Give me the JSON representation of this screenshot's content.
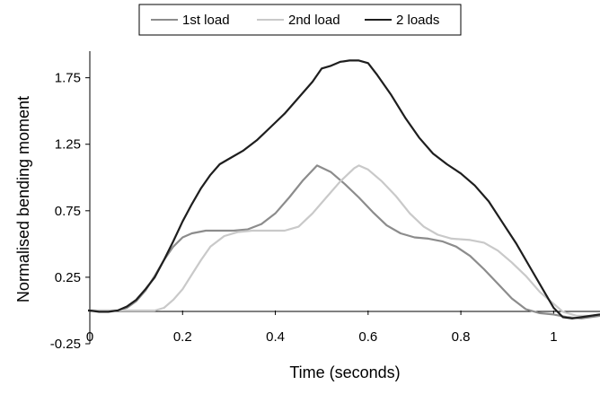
{
  "chart_data": {
    "type": "line",
    "title": "",
    "xlabel": "Time (seconds)",
    "ylabel": "Normalised bending moment",
    "xlim": [
      0,
      1.1
    ],
    "ylim": [
      -0.25,
      1.95
    ],
    "x_ticks": [
      "0",
      "0.2",
      "0.4",
      "0.6",
      "0.8",
      "1"
    ],
    "x_tick_values": [
      0,
      0.2,
      0.4,
      0.6,
      0.8,
      1.0
    ],
    "y_ticks": [
      "-0.25",
      "0.25",
      "0.75",
      "1.25",
      "1.75"
    ],
    "y_tick_values": [
      -0.25,
      0.25,
      0.75,
      1.25,
      1.75
    ],
    "grid": false,
    "legend_position": "top",
    "series": [
      {
        "name": "1st load",
        "color": "#8c8c8c",
        "x": [
          -0.02,
          0.0,
          0.02,
          0.04,
          0.06,
          0.08,
          0.1,
          0.12,
          0.14,
          0.16,
          0.18,
          0.2,
          0.22,
          0.25,
          0.28,
          0.31,
          0.34,
          0.37,
          0.4,
          0.43,
          0.46,
          0.49,
          0.52,
          0.55,
          0.58,
          0.61,
          0.64,
          0.67,
          0.7,
          0.73,
          0.76,
          0.79,
          0.82,
          0.85,
          0.88,
          0.91,
          0.94,
          0.97,
          1.0,
          1.03,
          1.06,
          1.1
        ],
        "y": [
          0.0,
          0.0,
          0.0,
          0.0,
          0.0,
          0.02,
          0.07,
          0.15,
          0.26,
          0.38,
          0.48,
          0.55,
          0.58,
          0.6,
          0.6,
          0.6,
          0.61,
          0.65,
          0.73,
          0.85,
          0.98,
          1.09,
          1.04,
          0.95,
          0.85,
          0.74,
          0.64,
          0.58,
          0.55,
          0.54,
          0.52,
          0.48,
          0.41,
          0.31,
          0.2,
          0.09,
          0.01,
          -0.02,
          -0.03,
          -0.05,
          -0.06,
          -0.04
        ]
      },
      {
        "name": "2nd load",
        "color": "#c9c9c9",
        "x": [
          -0.02,
          0.0,
          0.03,
          0.06,
          0.09,
          0.12,
          0.14,
          0.16,
          0.18,
          0.2,
          0.22,
          0.24,
          0.26,
          0.29,
          0.32,
          0.35,
          0.38,
          0.42,
          0.45,
          0.48,
          0.51,
          0.54,
          0.57,
          0.58,
          0.6,
          0.63,
          0.66,
          0.69,
          0.72,
          0.75,
          0.78,
          0.82,
          0.85,
          0.88,
          0.91,
          0.94,
          0.97,
          1.0,
          1.02,
          1.05,
          1.08,
          1.1
        ],
        "y": [
          0.0,
          0.0,
          0.0,
          0.0,
          0.0,
          0.0,
          0.0,
          0.02,
          0.08,
          0.16,
          0.27,
          0.38,
          0.48,
          0.56,
          0.59,
          0.6,
          0.6,
          0.6,
          0.63,
          0.73,
          0.85,
          0.97,
          1.07,
          1.09,
          1.06,
          0.97,
          0.86,
          0.73,
          0.63,
          0.57,
          0.54,
          0.53,
          0.51,
          0.45,
          0.36,
          0.26,
          0.14,
          0.05,
          -0.01,
          -0.04,
          -0.04,
          -0.03
        ]
      },
      {
        "name": "2 loads",
        "color": "#1e1e1e",
        "x": [
          -0.02,
          0.0,
          0.02,
          0.04,
          0.06,
          0.08,
          0.1,
          0.12,
          0.14,
          0.16,
          0.18,
          0.2,
          0.22,
          0.24,
          0.26,
          0.28,
          0.3,
          0.33,
          0.36,
          0.39,
          0.42,
          0.45,
          0.48,
          0.5,
          0.52,
          0.54,
          0.56,
          0.58,
          0.6,
          0.62,
          0.65,
          0.68,
          0.71,
          0.74,
          0.77,
          0.8,
          0.83,
          0.86,
          0.89,
          0.92,
          0.95,
          0.98,
          1.0,
          1.02,
          1.04,
          1.06,
          1.08,
          1.1
        ],
        "y": [
          0.0,
          0.0,
          -0.01,
          -0.01,
          0.0,
          0.03,
          0.08,
          0.16,
          0.25,
          0.38,
          0.52,
          0.67,
          0.8,
          0.92,
          1.02,
          1.1,
          1.14,
          1.2,
          1.28,
          1.38,
          1.48,
          1.6,
          1.72,
          1.82,
          1.84,
          1.87,
          1.88,
          1.88,
          1.86,
          1.77,
          1.62,
          1.45,
          1.3,
          1.18,
          1.1,
          1.03,
          0.94,
          0.82,
          0.66,
          0.5,
          0.32,
          0.14,
          0.02,
          -0.05,
          -0.06,
          -0.05,
          -0.04,
          -0.03
        ]
      }
    ]
  }
}
